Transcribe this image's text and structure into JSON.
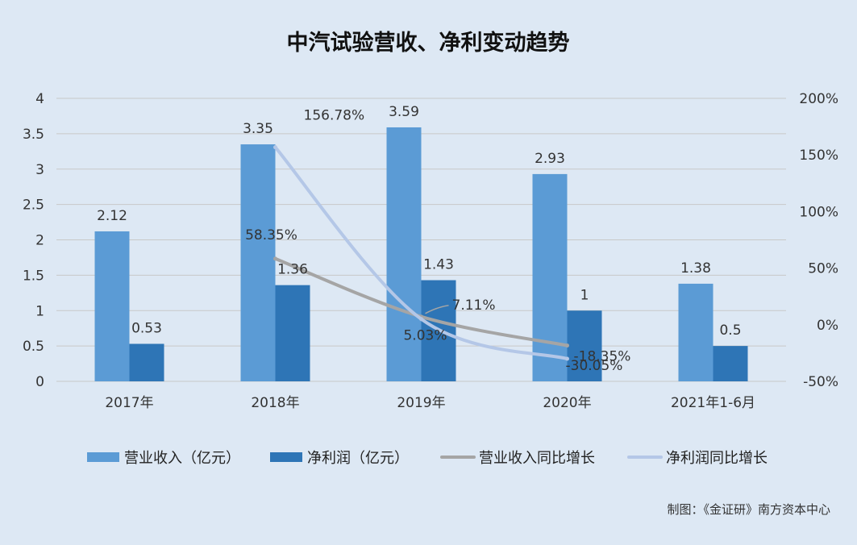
{
  "chart_data": {
    "type": "bar",
    "title": "中汽试验营收、净利变动趋势",
    "categories": [
      "2017年",
      "2018年",
      "2019年",
      "2020年",
      "2021年1-6月"
    ],
    "series": [
      {
        "name": "营业收入（亿元）",
        "kind": "bar",
        "axis": "left",
        "color": "#5b9bd5",
        "values": [
          2.12,
          3.35,
          3.59,
          2.93,
          1.38
        ],
        "labels": [
          "2.12",
          "3.35",
          "3.59",
          "2.93",
          "1.38"
        ]
      },
      {
        "name": "净利润（亿元）",
        "kind": "bar",
        "axis": "left",
        "color": "#2e75b6",
        "values": [
          0.53,
          1.36,
          1.43,
          1,
          0.5
        ],
        "labels": [
          "0.53",
          "1.36",
          "1.43",
          "1",
          "0.5"
        ]
      },
      {
        "name": "营业收入同比增长",
        "kind": "line",
        "axis": "right",
        "color": "#a5a5a5",
        "values": [
          null,
          58.35,
          7.11,
          -18.35,
          null
        ],
        "labels": [
          null,
          "58.35%",
          "7.11%",
          "-18.35%",
          null
        ]
      },
      {
        "name": "净利润同比增长",
        "kind": "line",
        "axis": "right",
        "color": "#b4c7e7",
        "values": [
          null,
          156.78,
          5.03,
          -30.05,
          null
        ],
        "labels": [
          null,
          "156.78%",
          "5.03%",
          "-30.05%",
          null
        ]
      }
    ],
    "left_axis": {
      "ylim": [
        0,
        4
      ],
      "ticks": [
        "0",
        "0.5",
        "1",
        "1.5",
        "2",
        "2.5",
        "3",
        "3.5",
        "4"
      ]
    },
    "right_axis": {
      "ylim": [
        -50,
        200
      ],
      "ticks": [
        "-50%",
        "0%",
        "50%",
        "100%",
        "150%",
        "200%"
      ]
    },
    "grid": true,
    "legend_position": "bottom"
  },
  "footer": {
    "source": "制图：《金证研》南方资本中心"
  },
  "colors": {
    "background": "#dde8f4",
    "grid": "#c8c8c8"
  }
}
